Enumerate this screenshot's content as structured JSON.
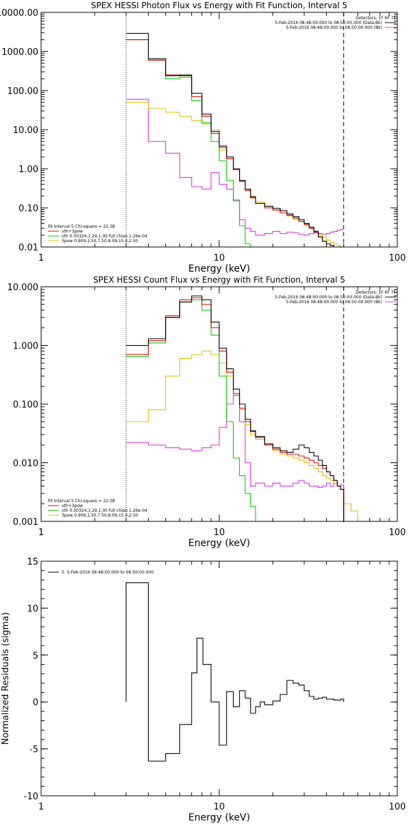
{
  "chart_data": [
    {
      "type": "step",
      "title": "SPEX HESSI Photon Flux vs Energy with Fit Function, Interval 5",
      "xlabel": "Energy (keV)",
      "ylabel": "",
      "xscale": "log",
      "yscale": "log",
      "xlim": [
        1,
        100
      ],
      "ylim": [
        0.01,
        10000
      ],
      "x_ticks": [
        1,
        10,
        100
      ],
      "x_tick_labels": [
        "1",
        "10",
        "100"
      ],
      "y_ticks": [
        0.01,
        0.1,
        1,
        10,
        100,
        1000,
        10000
      ],
      "y_tick_labels": [
        "0.01",
        "0.10",
        "1.00",
        "10.00",
        "100.00",
        "1000.00",
        "10000.00"
      ],
      "vlines": [
        3,
        50
      ],
      "legend_top": {
        "lines": [
          {
            "text": "Detectors: 1F 6F 7F",
            "color": ""
          },
          {
            "text": "5-Feb-2016 08:48:00.000 to 08:50:00.000 (Data-Bk)",
            "color": "#000000"
          },
          {
            "text": "5-Feb-2016 08:48:00.000 to 08:50:00.000 (Bk)",
            "color": "#e030e0"
          }
        ]
      },
      "legend_bottom": {
        "lines": [
          {
            "text": "Fit Interval 5   Chi-square = 22.38",
            "color": ""
          },
          {
            "text": "vth+3pow",
            "color": "#e00000"
          },
          {
            "text": "vth 0.00324,1.29,1.00  full chian 1.26e-04",
            "color": "#00d000"
          },
          {
            "text": "3pow 0.909,1.50,7.50,8.09,15.4,2.50",
            "color": "#e0c000"
          }
        ]
      },
      "bin_edges": [
        3,
        4,
        5,
        6,
        7,
        8,
        9,
        10,
        11,
        12,
        13,
        14,
        15,
        16,
        18,
        20,
        22,
        24,
        26,
        28,
        30,
        32,
        34,
        36,
        38,
        40,
        42,
        44,
        46,
        48,
        50
      ],
      "series": [
        {
          "name": "Data-Bk",
          "color": "#000000",
          "values": [
            2900,
            650,
            240,
            250,
            85,
            25,
            9.0,
            3.8,
            2.0,
            1.0,
            0.5,
            0.3,
            0.19,
            0.13,
            0.11,
            0.098,
            0.085,
            0.07,
            0.06,
            0.05,
            0.04,
            0.032,
            0.025,
            0.018,
            0.014,
            0.012,
            0.011,
            0.01,
            0.01,
            0.0
          ]
        },
        {
          "name": "vth+3pow",
          "color": "#e00000",
          "values": [
            2000,
            600,
            250,
            240,
            70,
            22,
            8.0,
            3.5,
            1.8,
            0.95,
            0.48,
            0.28,
            0.18,
            0.13,
            0.1,
            0.088,
            0.075,
            0.065,
            0.055,
            0.045,
            0.038,
            0.03,
            0.024,
            0.018,
            0.014,
            0.012,
            0.011,
            0.01,
            0.01,
            0.0
          ]
        },
        {
          "name": "vth",
          "color": "#00d000",
          "values": [
            2000,
            600,
            200,
            220,
            55,
            15,
            5.0,
            1.6,
            0.5,
            0.15,
            0.035,
            0.012,
            0.005,
            0.0,
            0.0,
            0.0,
            0.0,
            0.0,
            0.0,
            0.0,
            0.0,
            0.0,
            0.0,
            0.0,
            0.0,
            0.0,
            0.0,
            0.0,
            0.0,
            0.0
          ]
        },
        {
          "name": "3pow",
          "color": "#e0c000",
          "values": [
            50,
            35,
            28,
            22,
            17,
            14,
            10,
            3.0,
            1.8,
            1.0,
            0.5,
            0.3,
            0.2,
            0.14,
            0.11,
            0.09,
            0.075,
            0.062,
            0.052,
            0.045,
            0.036,
            0.03,
            0.025,
            0.021,
            0.018,
            0.015,
            0.013,
            0.012,
            0.011,
            0.01
          ]
        },
        {
          "name": "Bk",
          "color": "#e030e0",
          "values": [
            60,
            5.0,
            2.5,
            0.6,
            0.35,
            0.3,
            0.8,
            0.4,
            0.3,
            0.16,
            0.05,
            0.03,
            0.025,
            0.02,
            0.022,
            0.025,
            0.022,
            0.024,
            0.023,
            0.021,
            0.02,
            0.022,
            0.023,
            0.022,
            0.021,
            0.022,
            0.024,
            0.025,
            0.027,
            0.028
          ]
        }
      ]
    },
    {
      "type": "step",
      "title": "SPEX HESSI Count Flux vs Energy with Fit Function, Interval 5",
      "xlabel": "Energy (keV)",
      "ylabel": "",
      "xscale": "log",
      "yscale": "log",
      "xlim": [
        1,
        100
      ],
      "ylim": [
        0.001,
        10
      ],
      "x_ticks": [
        1,
        10,
        100
      ],
      "x_tick_labels": [
        "1",
        "10",
        "100"
      ],
      "y_ticks": [
        0.001,
        0.01,
        0.1,
        1,
        10
      ],
      "y_tick_labels": [
        "0.001",
        "0.010",
        "0.100",
        "1.000",
        "10.000"
      ],
      "vlines": [
        3,
        50
      ],
      "legend_top": {
        "lines": [
          {
            "text": "Detectors: 1F 6F 7F",
            "color": ""
          },
          {
            "text": "5-Feb-2016 08:48:00.000 to 08:50:00.000 (Data-Bk)",
            "color": "#000000"
          },
          {
            "text": "5-Feb-2016 08:48:00.000 to 08:50:00.000 (Bk)",
            "color": "#e030e0"
          }
        ]
      },
      "legend_bottom": {
        "lines": [
          {
            "text": "Fit Interval 5   Chi-square = 22.38",
            "color": ""
          },
          {
            "text": "vth+3pow",
            "color": "#e00000"
          },
          {
            "text": "vth 0.00324,1.29,1.00  full chian 1.26e-04",
            "color": "#00d000"
          },
          {
            "text": "3pow 0.909,1.50,7.50,8.09,15.4,2.50",
            "color": "#e0c000"
          }
        ]
      },
      "bin_edges": [
        3,
        4,
        5,
        6,
        7,
        8,
        9,
        10,
        11,
        12,
        13,
        14,
        15,
        16,
        18,
        20,
        22,
        24,
        26,
        28,
        30,
        32,
        34,
        36,
        38,
        40,
        42,
        44,
        46,
        48,
        50,
        55,
        60,
        66
      ],
      "series": [
        {
          "name": "Data-Bk",
          "color": "#000000",
          "values": [
            1.0,
            1.3,
            3.0,
            5.5,
            7.0,
            6.0,
            2.5,
            0.9,
            0.4,
            0.18,
            0.1,
            0.055,
            0.035,
            0.028,
            0.021,
            0.018,
            0.016,
            0.015,
            0.017,
            0.02,
            0.018,
            0.015,
            0.013,
            0.011,
            0.009,
            0.007,
            0.006,
            0.005,
            0.004,
            0.0035,
            0.0,
            0.0,
            0.0
          ]
        },
        {
          "name": "vth+3pow",
          "color": "#e00000",
          "values": [
            0.7,
            1.2,
            3.2,
            6.0,
            6.5,
            5.0,
            2.0,
            0.8,
            0.35,
            0.15,
            0.085,
            0.05,
            0.034,
            0.027,
            0.02,
            0.017,
            0.015,
            0.014,
            0.014,
            0.013,
            0.012,
            0.011,
            0.01,
            0.009,
            0.008,
            0.007,
            0.006,
            0.005,
            0.004,
            0.0035,
            0.0,
            0.0,
            0.0
          ]
        },
        {
          "name": "vth",
          "color": "#00d000",
          "values": [
            0.65,
            1.1,
            3.0,
            5.5,
            6.0,
            4.0,
            1.5,
            0.3,
            0.05,
            0.012,
            0.006,
            0.003,
            0.0018,
            0.0,
            0.0,
            0.0,
            0.0,
            0.0,
            0.0,
            0.0,
            0.0,
            0.0,
            0.0,
            0.0,
            0.0,
            0.0,
            0.0,
            0.0,
            0.0,
            0.0,
            0.0,
            0.0,
            0.0
          ]
        },
        {
          "name": "3pow",
          "color": "#e0c000",
          "values": [
            0.05,
            0.08,
            0.3,
            0.6,
            0.7,
            0.8,
            0.7,
            0.5,
            0.3,
            0.15,
            0.08,
            0.045,
            0.03,
            0.025,
            0.02,
            0.016,
            0.014,
            0.013,
            0.012,
            0.011,
            0.01,
            0.009,
            0.008,
            0.007,
            0.006,
            0.0055,
            0.005,
            0.0045,
            0.004,
            0.0035,
            0.002,
            0.0015,
            0.001
          ]
        },
        {
          "name": "Bk",
          "color": "#e030e0",
          "values": [
            0.022,
            0.02,
            0.018,
            0.017,
            0.016,
            0.018,
            0.02,
            0.04,
            0.1,
            0.14,
            0.05,
            0.01,
            0.004,
            0.0045,
            0.004,
            0.0045,
            0.004,
            0.004,
            0.0045,
            0.005,
            0.0045,
            0.004,
            0.004,
            0.0038,
            0.004,
            0.0045,
            0.004,
            0.0045,
            0.004,
            0.0042,
            0.0,
            0.0,
            0.0
          ]
        }
      ]
    },
    {
      "type": "step",
      "title": "",
      "xlabel": "Energy (keV)",
      "ylabel": "Normalized Residuals (sigma)",
      "xscale": "log",
      "yscale": "linear",
      "xlim": [
        1,
        100
      ],
      "ylim": [
        -10,
        15
      ],
      "x_ticks": [
        1,
        10,
        100
      ],
      "x_tick_labels": [
        "1",
        "10",
        "100"
      ],
      "y_ticks": [
        -10,
        -5,
        0,
        5,
        10,
        15
      ],
      "y_tick_labels": [
        "-10",
        "-5",
        "0",
        "5",
        "10",
        "15"
      ],
      "legend": {
        "lines": [
          {
            "text": "5.  5-Feb-2016 08:48:00.000 to 08:50:00.000",
            "color": "#000000"
          }
        ]
      },
      "bin_edges": [
        3,
        4,
        5,
        6,
        7,
        7.5,
        8.1,
        9,
        10,
        11,
        12,
        13,
        14,
        15,
        16,
        17,
        18,
        20,
        22,
        24,
        26,
        28,
        30,
        32,
        34,
        36,
        38,
        40,
        42,
        44,
        46,
        48,
        50
      ],
      "series": [
        {
          "name": "5.",
          "color": "#000000",
          "values": [
            12.7,
            -6.3,
            -5.5,
            -2.4,
            3.1,
            6.8,
            4.0,
            0.0,
            -4.6,
            1.1,
            -0.5,
            1.2,
            0.4,
            -1.2,
            -0.5,
            0.0,
            -0.3,
            0.1,
            0.8,
            2.3,
            2.0,
            1.8,
            1.2,
            0.6,
            0.3,
            0.4,
            0.5,
            0.3,
            0.3,
            0.2,
            0.2,
            0.3
          ]
        }
      ]
    }
  ]
}
